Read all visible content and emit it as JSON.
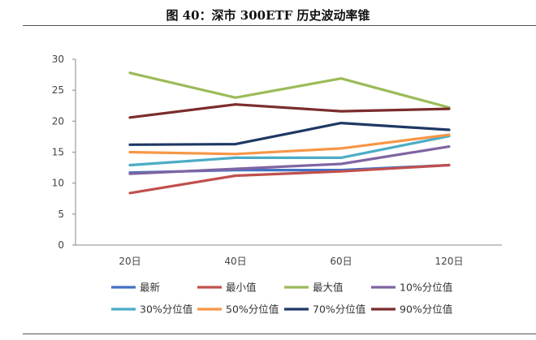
{
  "figure": {
    "title": "图 40：深市 300ETF 历史波动率锥"
  },
  "chart_data": {
    "type": "line",
    "title": "图 40：深市 300ETF 历史波动率锥",
    "xlabel": "",
    "ylabel": "",
    "categories": [
      "20日",
      "40日",
      "60日",
      "120日"
    ],
    "ylim": [
      0,
      30
    ],
    "yticks": [
      0,
      5,
      10,
      15,
      20,
      25,
      30
    ],
    "grid": false,
    "legend_position": "bottom",
    "series": [
      {
        "name": "最新",
        "color": "#4472C4",
        "values": [
          11.7,
          12.1,
          12.1,
          12.9
        ]
      },
      {
        "name": "最小值",
        "color": "#C0504D",
        "values": [
          8.4,
          11.2,
          11.9,
          12.9
        ]
      },
      {
        "name": "最大值",
        "color": "#9BBB59",
        "values": [
          27.8,
          23.8,
          26.9,
          22.2
        ]
      },
      {
        "name": "10%分位值",
        "color": "#8064A2",
        "values": [
          11.5,
          12.3,
          13.1,
          15.9
        ]
      },
      {
        "name": "30%分位值",
        "color": "#4BACC6",
        "values": [
          12.9,
          14.1,
          14.1,
          17.6
        ]
      },
      {
        "name": "50%分位值",
        "color": "#F79646",
        "values": [
          15.0,
          14.7,
          15.6,
          17.8
        ]
      },
      {
        "name": "70%分位值",
        "color": "#1F3864",
        "values": [
          16.2,
          16.3,
          19.7,
          18.6
        ]
      },
      {
        "name": "90%分位值",
        "color": "#7B2C2C",
        "values": [
          20.6,
          22.7,
          21.6,
          22.0
        ]
      }
    ]
  }
}
